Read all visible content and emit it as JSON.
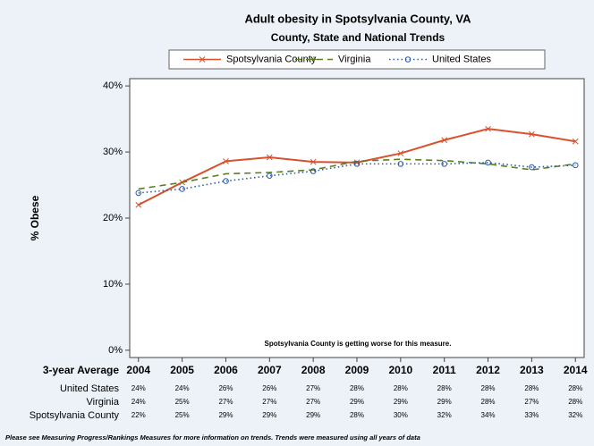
{
  "chart_data": {
    "type": "line",
    "title": "Adult obesity in Spotsylvania County, VA",
    "subtitle": "County, State and National Trends",
    "y_label": "% Obese",
    "annotation": "Spotsylvania County is getting worse for this measure.",
    "table_label": "3-year Average",
    "footnote": "Please see Measuring Progress/Rankings Measures for more information on trends. Trends were measured using all years of data",
    "x": [
      2004,
      2005,
      2006,
      2007,
      2008,
      2009,
      2010,
      2011,
      2012,
      2013,
      2014
    ],
    "xlim": [
      2003.8,
      2014.2
    ],
    "xticks": [
      2004,
      2005,
      2006,
      2007,
      2008,
      2009,
      2010,
      2011,
      2012,
      2013,
      2014
    ],
    "ylim": [
      -1.1,
      41.1
    ],
    "yticks": [
      {
        "value": 0,
        "label": "0%"
      },
      {
        "value": 10,
        "label": "10%"
      },
      {
        "value": 20,
        "label": "20%"
      },
      {
        "value": 30,
        "label": "30%"
      },
      {
        "value": 40,
        "label": "40%"
      }
    ],
    "series": [
      {
        "name": "Spotsylvania County",
        "color": "#d9512c",
        "dash": "none",
        "marker": "x",
        "values": [
          22.0,
          25.4,
          28.6,
          29.2,
          28.5,
          28.4,
          29.8,
          31.8,
          33.5,
          32.7,
          31.6
        ],
        "value_labels": [
          "22%",
          "25%",
          "29%",
          "29%",
          "29%",
          "28%",
          "30%",
          "32%",
          "34%",
          "33%",
          "32%"
        ]
      },
      {
        "name": "Virginia",
        "color": "#5b7f1e",
        "dash": "7 5",
        "marker": "plus",
        "values": [
          24.4,
          25.4,
          26.7,
          26.9,
          27.3,
          28.6,
          28.9,
          28.7,
          28.2,
          27.3,
          28.2
        ],
        "value_labels": [
          "24%",
          "25%",
          "27%",
          "27%",
          "27%",
          "29%",
          "29%",
          "29%",
          "28%",
          "27%",
          "28%"
        ]
      },
      {
        "name": "United States",
        "color": "#2a5aa8",
        "dash": "1.5 3",
        "marker": "circle",
        "values": [
          23.8,
          24.4,
          25.6,
          26.4,
          27.1,
          28.2,
          28.2,
          28.2,
          28.4,
          27.7,
          28.0
        ],
        "value_labels": [
          "24%",
          "24%",
          "26%",
          "26%",
          "27%",
          "28%",
          "28%",
          "28%",
          "28%",
          "28%",
          "28%"
        ]
      }
    ]
  }
}
